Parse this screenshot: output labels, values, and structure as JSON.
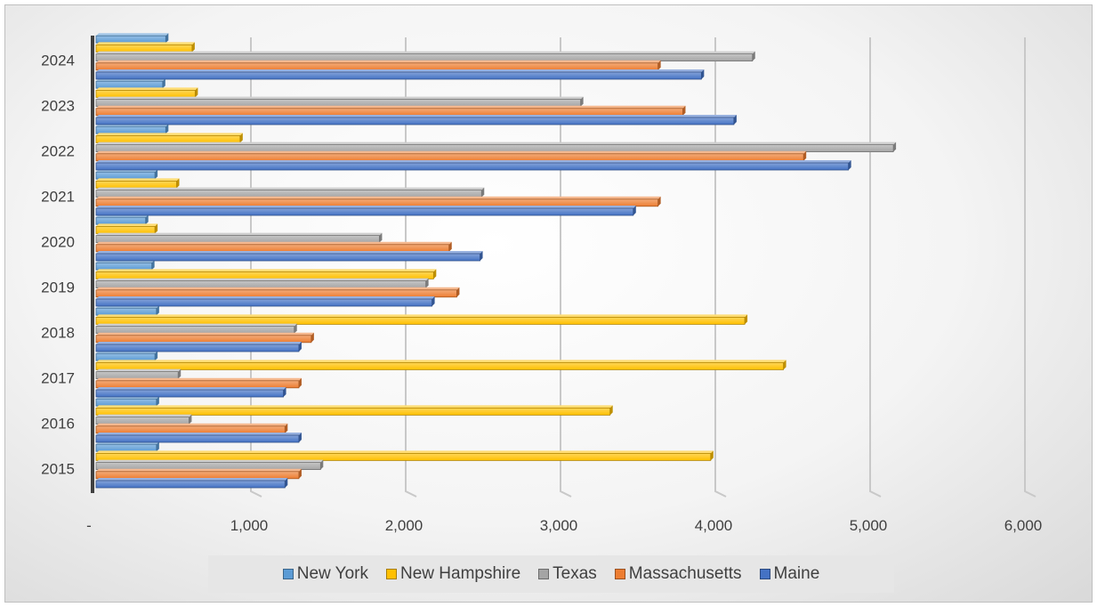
{
  "chart_data": {
    "type": "bar",
    "orientation": "horizontal",
    "categories": [
      "2015",
      "2016",
      "2017",
      "2018",
      "2019",
      "2020",
      "2021",
      "2022",
      "2023",
      "2024"
    ],
    "series": [
      {
        "name": "New York",
        "color": "#5b9bd5",
        "values": [
          390,
          390,
          380,
          390,
          360,
          320,
          380,
          450,
          430,
          450
        ]
      },
      {
        "name": "New Hampshire",
        "color": "#ffc000",
        "values": [
          3970,
          3320,
          4440,
          4190,
          2180,
          380,
          520,
          930,
          640,
          620
        ]
      },
      {
        "name": "Texas",
        "color": "#a5a5a5",
        "values": [
          1450,
          600,
          530,
          1280,
          2130,
          1830,
          2490,
          5150,
          3130,
          4240
        ]
      },
      {
        "name": "Massachusetts",
        "color": "#ed7d31",
        "values": [
          1310,
          1220,
          1310,
          1390,
          2330,
          2280,
          3630,
          4570,
          3790,
          3630
        ]
      },
      {
        "name": "Maine",
        "color": "#4472c4",
        "values": [
          1220,
          1310,
          1210,
          1310,
          2170,
          2480,
          3470,
          4860,
          4120,
          3910
        ]
      }
    ],
    "x_ticks": [
      "-",
      "1,000",
      "2,000",
      "3,000",
      "4,000",
      "5,000",
      "6,000"
    ],
    "xlim": [
      0,
      6000
    ],
    "grid": true,
    "legend_position": "bottom"
  }
}
